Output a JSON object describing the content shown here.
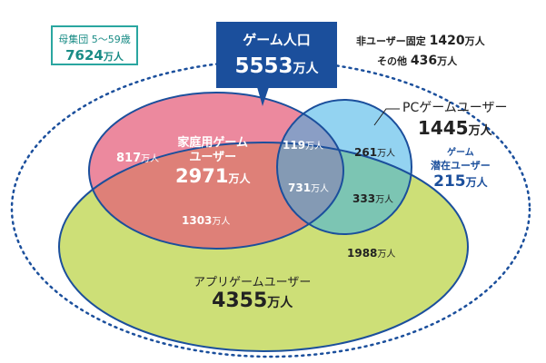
{
  "population_box": {
    "label": "母集団 5〜59歳",
    "value": "7624",
    "unit": "万人"
  },
  "game_population": {
    "title": "ゲーム人口",
    "value": "5553",
    "unit": "万人"
  },
  "notes": {
    "non_user_fixed": {
      "label": "非ユーザー固定",
      "value": "1420",
      "unit": "万人"
    },
    "other": {
      "label": "その他",
      "value": "436",
      "unit": "万人"
    }
  },
  "groups": {
    "console": {
      "label_line1": "家庭用ゲーム",
      "label_line2": "ユーザー",
      "total": "2971",
      "unit": "万人",
      "color": "#e45c78"
    },
    "pc": {
      "label": "PCゲームユーザー",
      "total": "1445",
      "unit": "万人",
      "color": "#3aaee6"
    },
    "app": {
      "label": "アプリゲームユーザー",
      "total": "4355",
      "unit": "万人",
      "color": "#c9dc6b"
    },
    "potential": {
      "label_line1": "ゲーム",
      "label_line2": "潜在ユーザー",
      "total": "215",
      "unit": "万人",
      "color": "#1b4f9c"
    }
  },
  "regions": [
    {
      "id": "console-only",
      "value": "817",
      "unit": "万人"
    },
    {
      "id": "console-pc",
      "value": "119",
      "unit": "万人"
    },
    {
      "id": "pc-only",
      "value": "261",
      "unit": "万人"
    },
    {
      "id": "all-three",
      "value": "731",
      "unit": "万人"
    },
    {
      "id": "console-app",
      "value": "1303",
      "unit": "万人"
    },
    {
      "id": "pc-app",
      "value": "333",
      "unit": "万人"
    },
    {
      "id": "app-only",
      "value": "1988",
      "unit": "万人"
    }
  ]
}
